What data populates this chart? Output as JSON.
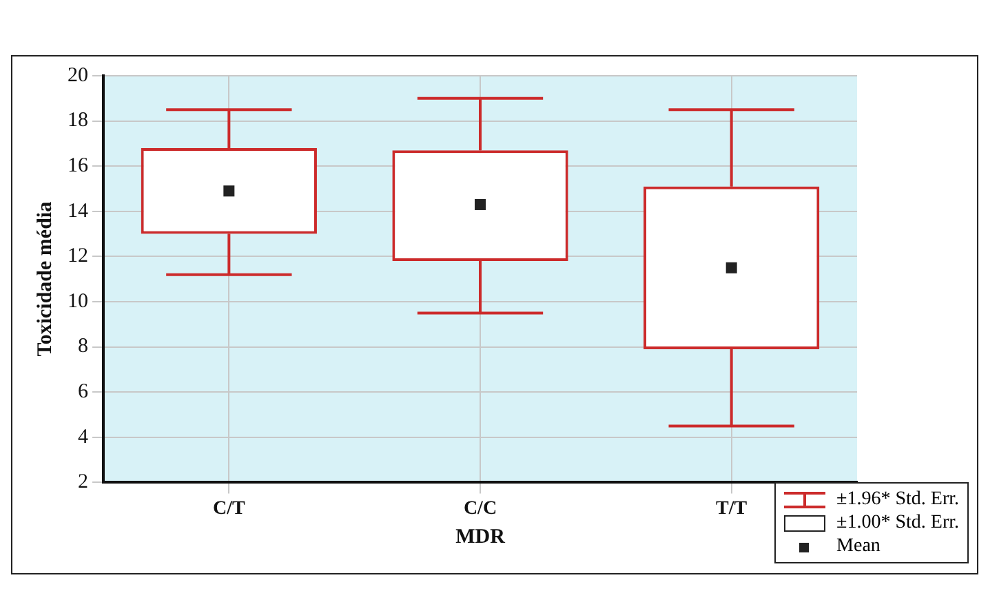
{
  "chart_data": {
    "type": "box",
    "xlabel": "MDR",
    "ylabel": "Toxicidade média",
    "categories": [
      "C/T",
      "C/C",
      "T/T"
    ],
    "color": "#cc2b2b",
    "boxes": [
      {
        "low": 11.2,
        "q1": 13.0,
        "q3": 16.8,
        "high": 18.5,
        "mean": 14.9
      },
      {
        "low": 9.5,
        "q1": 11.8,
        "q3": 16.7,
        "high": 19.0,
        "mean": 14.3
      },
      {
        "low": 4.5,
        "q1": 7.9,
        "q3": 15.1,
        "high": 18.5,
        "mean": 11.5
      }
    ],
    "ylim": [
      2,
      20
    ],
    "yticks": [
      2,
      4,
      6,
      8,
      10,
      12,
      14,
      16,
      18,
      20
    ],
    "grid": true,
    "marker": "square",
    "annotations": [
      "±1.96* Std. Err.",
      "±1.00* Std. Err.",
      "Mean"
    ]
  }
}
